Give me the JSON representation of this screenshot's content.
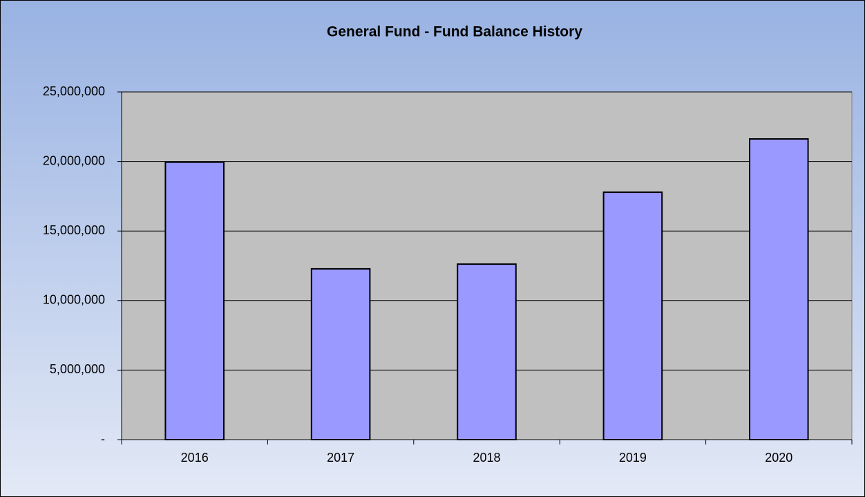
{
  "chart_data": {
    "type": "bar",
    "title": "General Fund - Fund Balance History",
    "categories": [
      "2016",
      "2017",
      "2018",
      "2019",
      "2020"
    ],
    "values": [
      19950000,
      12280000,
      12620000,
      17790000,
      21620000
    ],
    "color": "#9999ff",
    "ylim": [
      0,
      25000000
    ],
    "yticks": [
      {
        "value": 0,
        "label": "-"
      },
      {
        "value": 5000000,
        "label": "5,000,000"
      },
      {
        "value": 10000000,
        "label": "10,000,000"
      },
      {
        "value": 15000000,
        "label": "15,000,000"
      },
      {
        "value": 20000000,
        "label": "20,000,000"
      },
      {
        "value": 25000000,
        "label": "25,000,000"
      }
    ],
    "grid": true
  }
}
